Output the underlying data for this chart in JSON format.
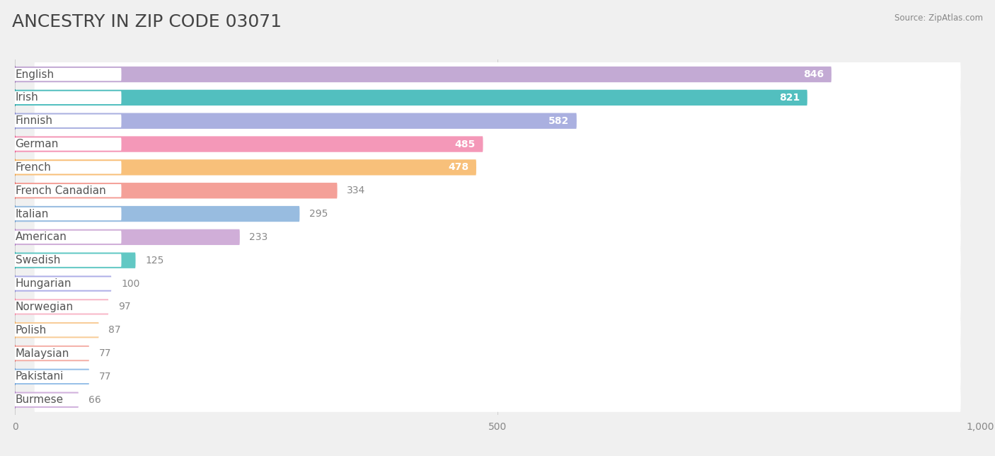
{
  "title": "ANCESTRY IN ZIP CODE 03071",
  "source": "Source: ZipAtlas.com",
  "categories": [
    "English",
    "Irish",
    "Finnish",
    "German",
    "French",
    "French Canadian",
    "Italian",
    "American",
    "Swedish",
    "Hungarian",
    "Norwegian",
    "Polish",
    "Malaysian",
    "Pakistani",
    "Burmese"
  ],
  "values": [
    846,
    821,
    582,
    485,
    478,
    334,
    295,
    233,
    125,
    100,
    97,
    87,
    77,
    77,
    66
  ],
  "bar_colors": [
    "#c3aad4",
    "#52bfbf",
    "#aab0e0",
    "#f498b8",
    "#f8c07a",
    "#f4a098",
    "#98bce0",
    "#d0aed8",
    "#62c8c4",
    "#b0b0e8",
    "#f8b8c8",
    "#f8cc98",
    "#f4b0a8",
    "#98c0e8",
    "#d0b0dc"
  ],
  "dot_colors": [
    "#a07db8",
    "#289898",
    "#7878c8",
    "#e8508a",
    "#e89838",
    "#e06868",
    "#6898c8",
    "#a878c0",
    "#28a8a8",
    "#8888d0",
    "#f07898",
    "#e8a858",
    "#e07878",
    "#6898d0",
    "#a878c0"
  ],
  "value_inside": [
    true,
    true,
    true,
    true,
    true,
    false,
    false,
    false,
    false,
    false,
    false,
    false,
    false,
    false,
    false
  ],
  "xlim": [
    0,
    1000
  ],
  "xticks": [
    0,
    500,
    1000
  ],
  "xtick_labels": [
    "0",
    "500",
    "1,000"
  ],
  "background_color": "#f0f0f0",
  "row_bg_color": "#ffffff",
  "title_fontsize": 18,
  "label_fontsize": 11,
  "value_fontsize": 10
}
